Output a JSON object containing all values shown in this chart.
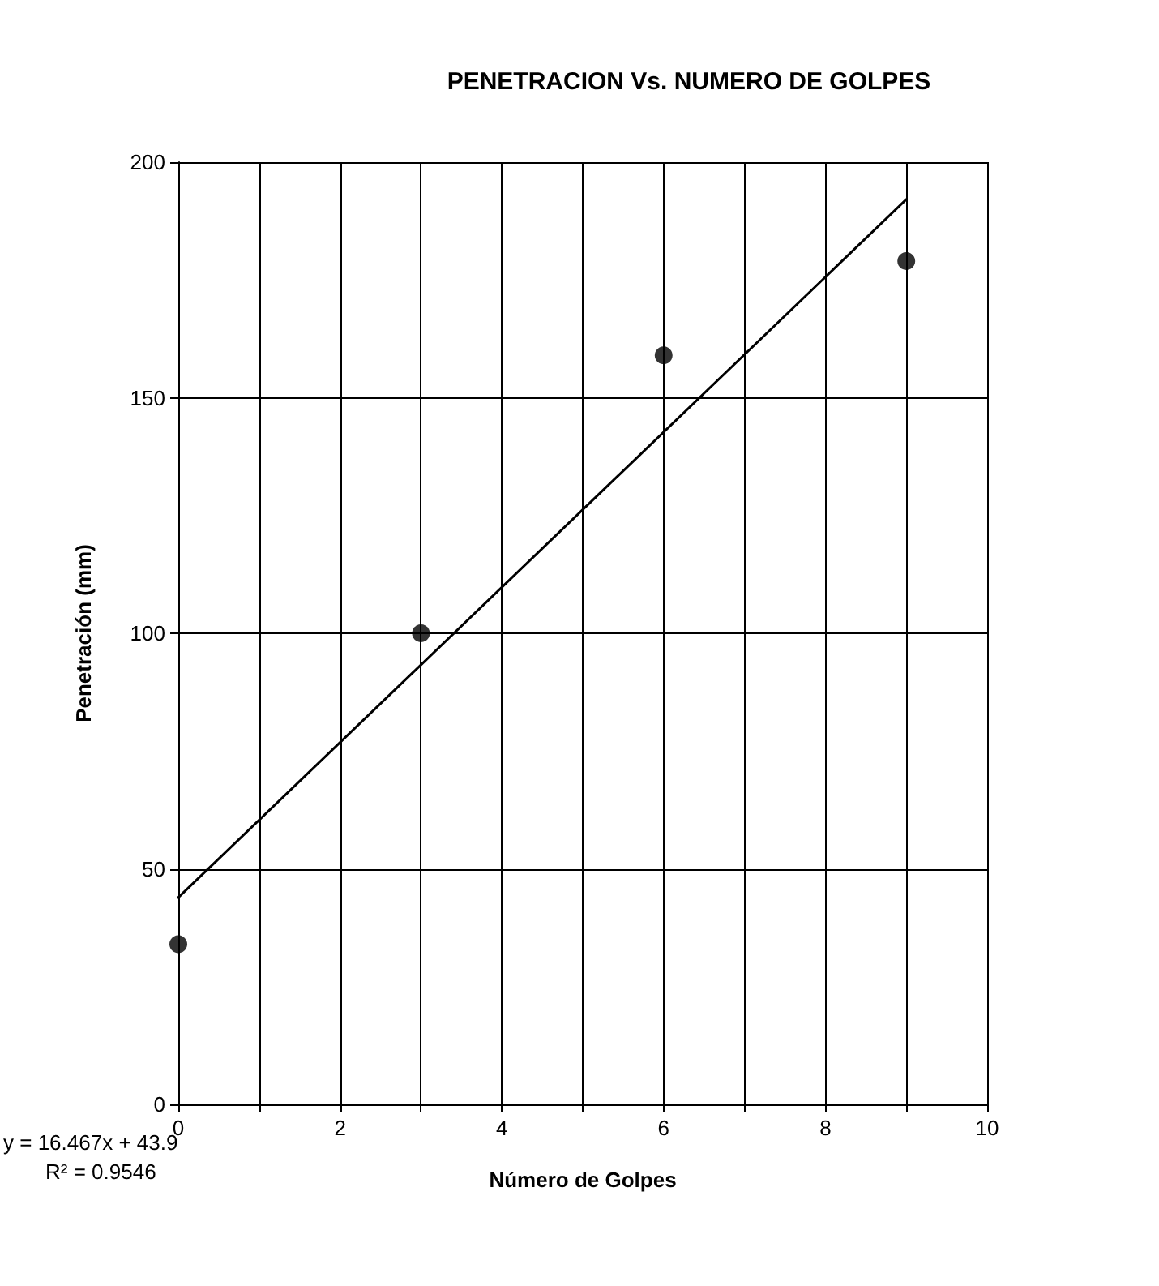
{
  "chart_data": {
    "type": "scatter",
    "title": "PENETRACION Vs. NUMERO DE GOLPES",
    "xlabel": "Número de Golpes",
    "ylabel": "Penetración (mm)",
    "series": [
      {
        "type": "scatter",
        "color": "#000000",
        "marker": "circle",
        "x": [
          0,
          3,
          6,
          9
        ],
        "values": [
          34,
          100,
          159,
          179
        ]
      },
      {
        "type": "line",
        "color": "#000000",
        "marker": "none",
        "line_style": "solid",
        "x": [
          0,
          9
        ],
        "values": [
          43.9,
          192.1
        ]
      }
    ],
    "xlim": [
      0,
      10
    ],
    "xticks": [
      0,
      {
        "value": 1,
        "label": null
      },
      2,
      {
        "value": 3,
        "label": null
      },
      4,
      {
        "value": 5,
        "label": null
      },
      6,
      {
        "value": 7,
        "label": null
      },
      8,
      {
        "value": 9,
        "label": null
      },
      10
    ],
    "ylim": [
      0,
      200
    ],
    "yticks": [
      0,
      50,
      100,
      150,
      200
    ],
    "grid": true,
    "annotations": [
      "y = 16.467x + 43.9",
      "R² = 0.9546"
    ]
  }
}
